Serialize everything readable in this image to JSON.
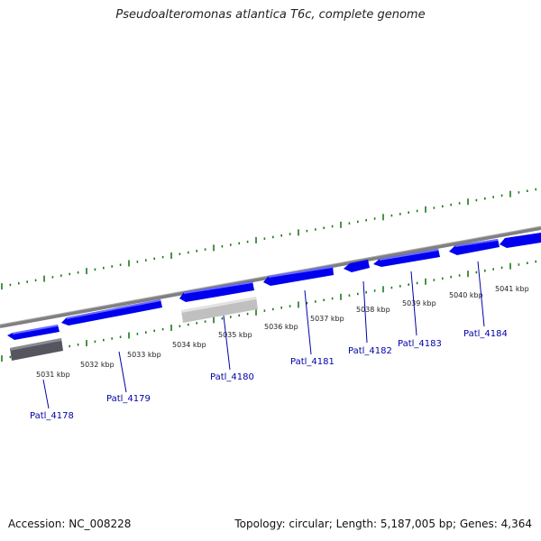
{
  "title": "Pseudoalteromonas atlantica T6c, complete genome",
  "footer": {
    "accession": "Accession: NC_008228",
    "summary": "Topology: circular; Length: 5,187,005 bp; Genes: 4,364"
  },
  "colors": {
    "gene": "#0000ee",
    "gene_dark": "#55555f",
    "gene_light": "#c0c0c0",
    "backbone": "#808080",
    "ticks": "#1a7a1a",
    "label": "#0000aa"
  },
  "scale_labels": [
    "5031 kbp",
    "5032 kbp",
    "5033 kbp",
    "5034 kbp",
    "5035 kbp",
    "5036 kbp",
    "5037 kbp",
    "5038 kbp",
    "5039 kbp",
    "5040 kbp",
    "5041 kbp"
  ],
  "gene_labels": [
    "Patl_4178",
    "Patl_4179",
    "Patl_4180",
    "Patl_4181",
    "Patl_4182",
    "Patl_4183",
    "Patl_4184"
  ]
}
